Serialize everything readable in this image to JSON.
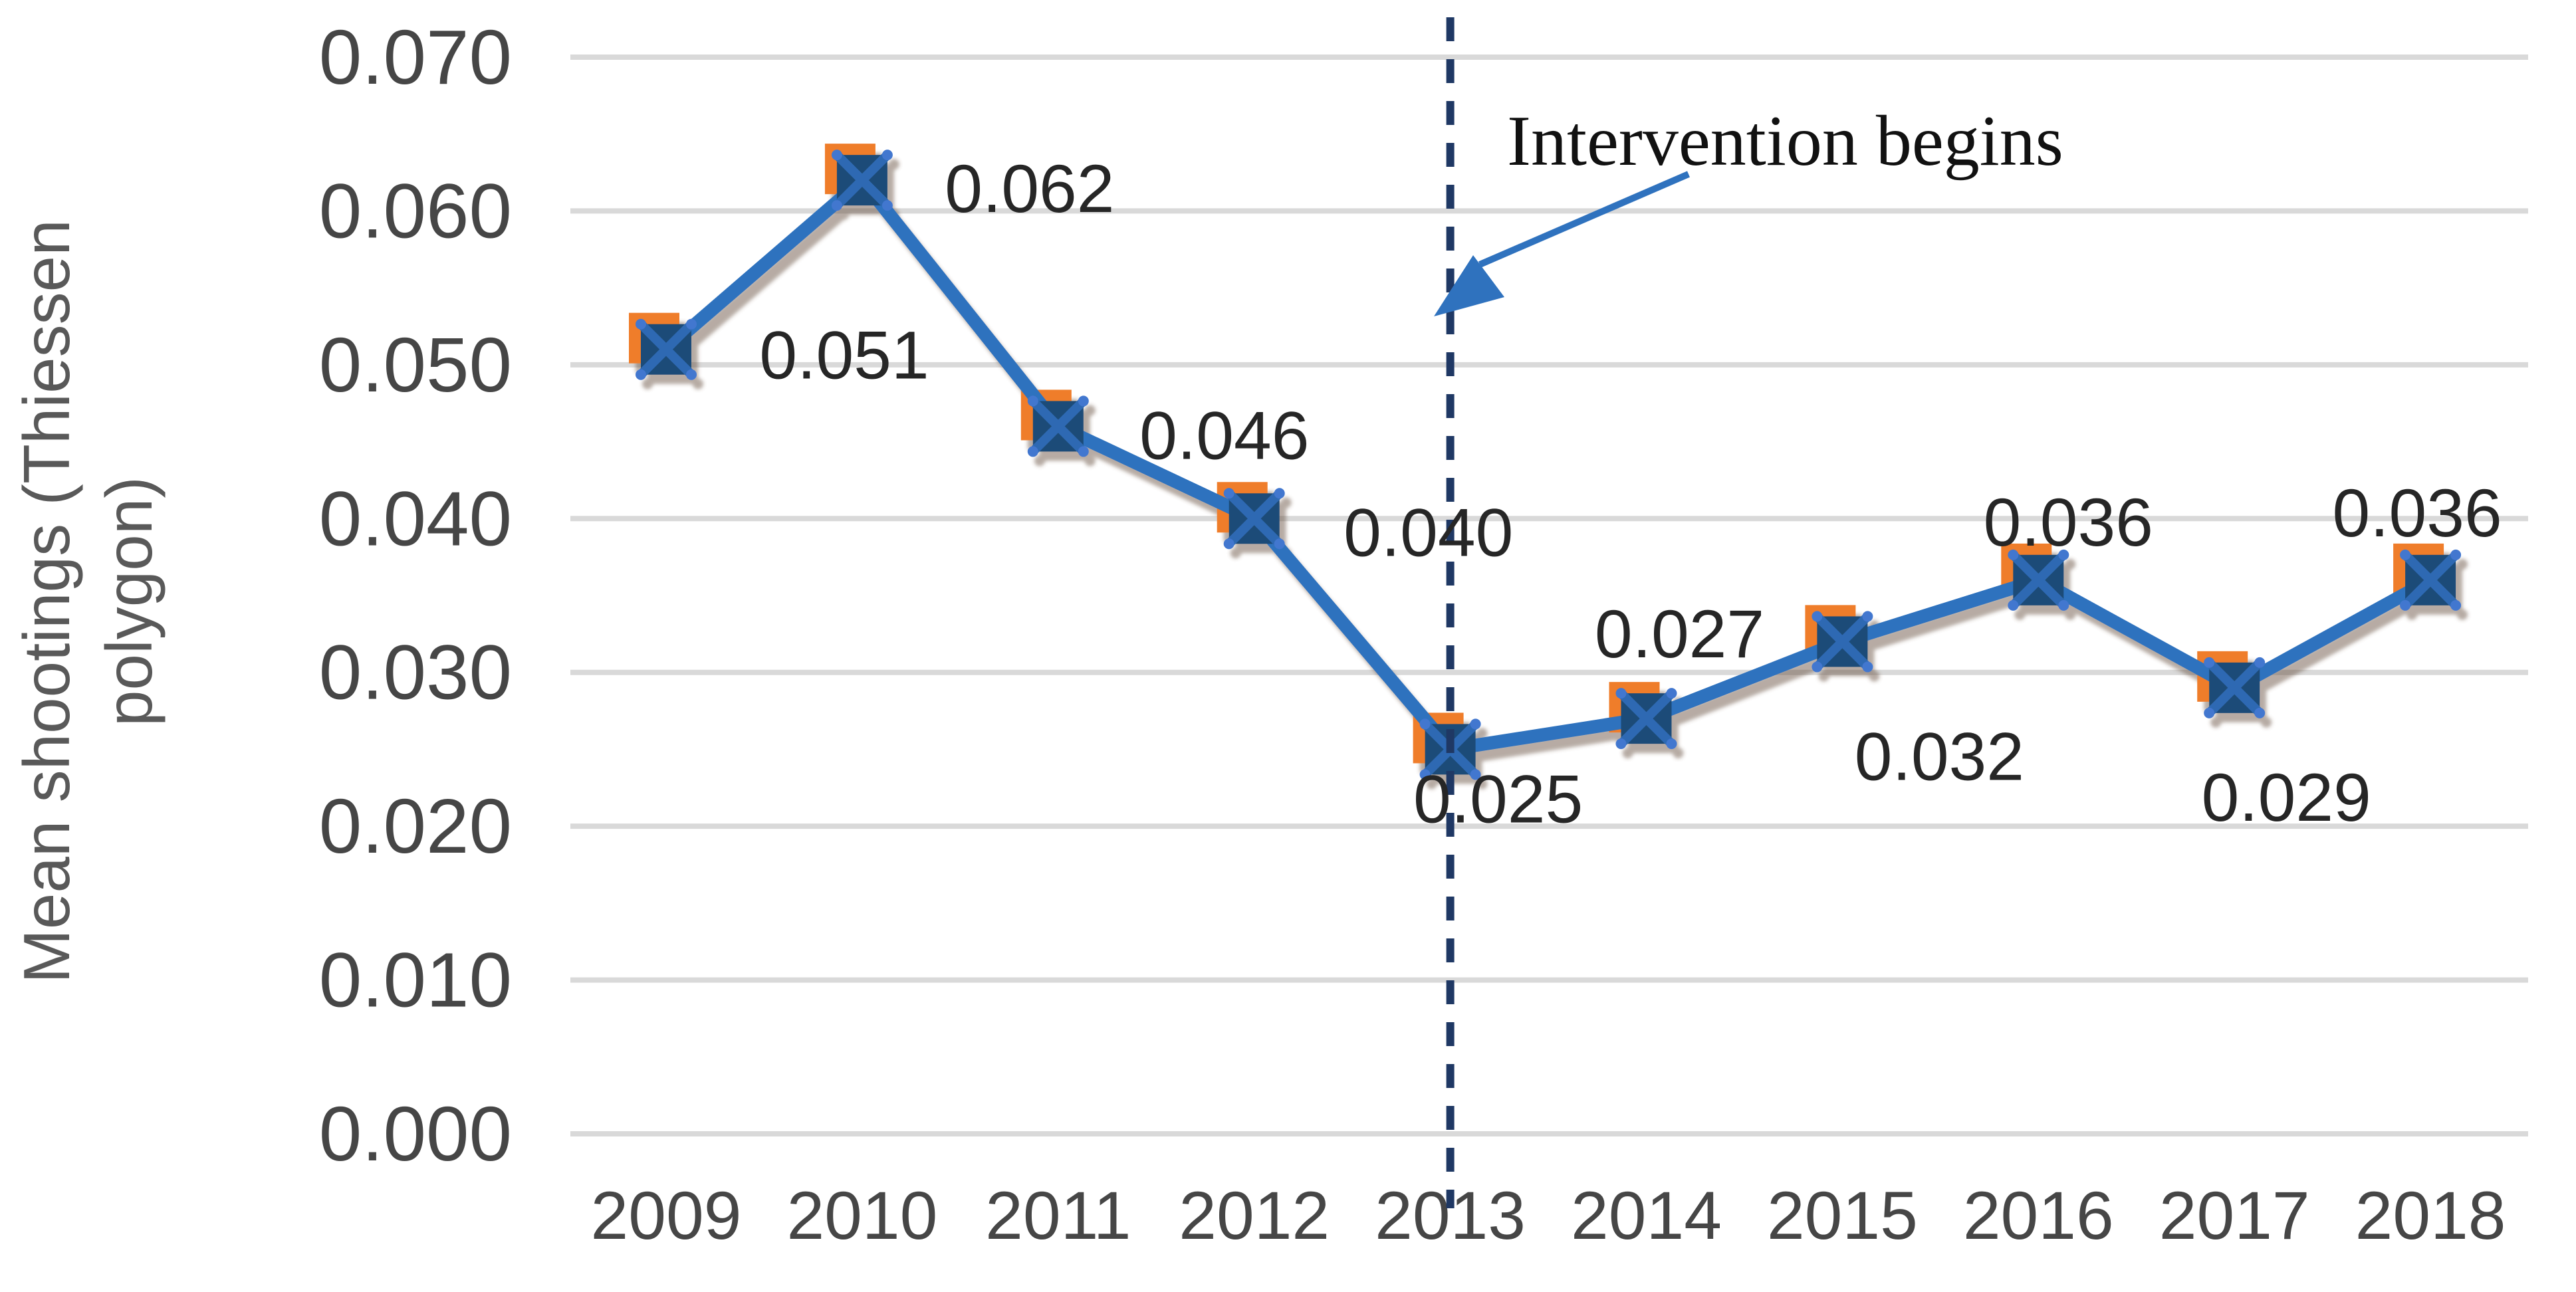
{
  "chart_data": {
    "type": "line",
    "title": "",
    "xlabel": "",
    "ylabel": "Mean shootings (Thiessen polygon)",
    "ylabel_lines": [
      "Mean shootings (Thiessen",
      "polygon)"
    ],
    "categories": [
      "2009",
      "2010",
      "2011",
      "2012",
      "2013",
      "2014",
      "2015",
      "2016",
      "2017",
      "2018"
    ],
    "series": [
      {
        "name": "Mean shootings (Thiessen polygon)",
        "values": [
          0.051,
          0.062,
          0.046,
          0.04,
          0.025,
          0.027,
          0.032,
          0.036,
          0.029,
          0.036
        ]
      }
    ],
    "data_labels": [
      "0.051",
      "0.062",
      "0.046",
      "0.040",
      "0.025",
      "0.027",
      "0.032",
      "0.036",
      "0.029",
      "0.036"
    ],
    "yticks": [
      "0.000",
      "0.010",
      "0.020",
      "0.030",
      "0.040",
      "0.050",
      "0.060",
      "0.070"
    ],
    "ylim": [
      0,
      0.07
    ],
    "ytick_step": 0.01,
    "grid": "horizontal",
    "legend": "none",
    "annotation": {
      "text": "Intervention begins",
      "target_category": "2013",
      "style": "dashed-vertical-reference-line-with-arrow"
    },
    "colors": {
      "line": "#2F72BE",
      "marker_fill": "#1E4C78",
      "marker_cross": "#2E69B3",
      "marker_handles": "#4377CF",
      "marker_back": "#EF7D2C",
      "reference_line": "#1F3864",
      "gridline": "#D9D9D9",
      "tick_text": "#464646",
      "data_label_text": "#262626",
      "axis_title_text": "#595959",
      "annotation_text": "#111111",
      "background": "#FFFFFF"
    }
  }
}
